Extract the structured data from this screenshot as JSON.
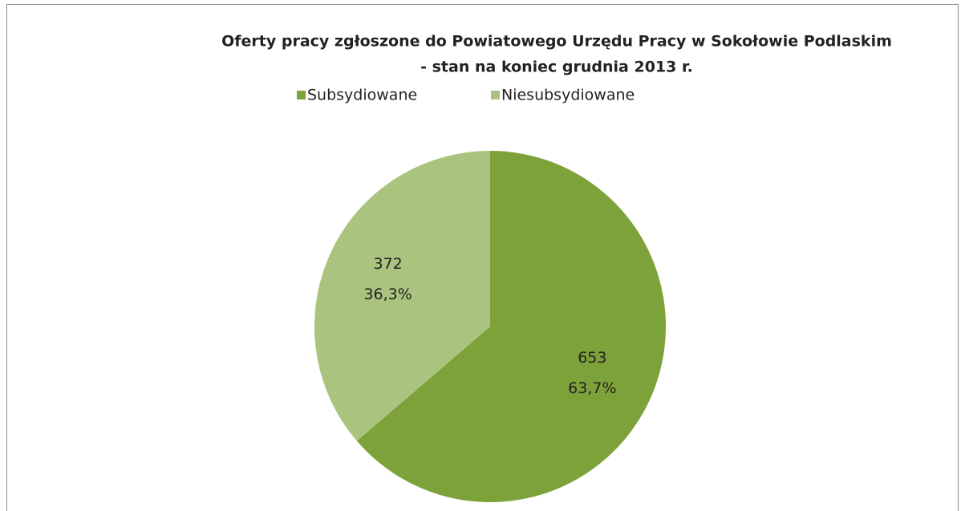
{
  "chart_data": {
    "type": "pie",
    "title": [
      "Oferty pracy zgłoszone do Powiatowego Urzędu Pracy w Sokołowie Podlaskim",
      "- stan na koniec grudnia 2013 r."
    ],
    "categories": [
      "Subsydiowane",
      "Niesubsydiowane"
    ],
    "values": [
      653,
      372
    ],
    "percents": [
      63.7,
      36.3
    ],
    "percent_labels": [
      "63,7%",
      "36,3%"
    ],
    "colors": [
      "#7ea23a",
      "#aac47f"
    ],
    "legend": "top"
  }
}
